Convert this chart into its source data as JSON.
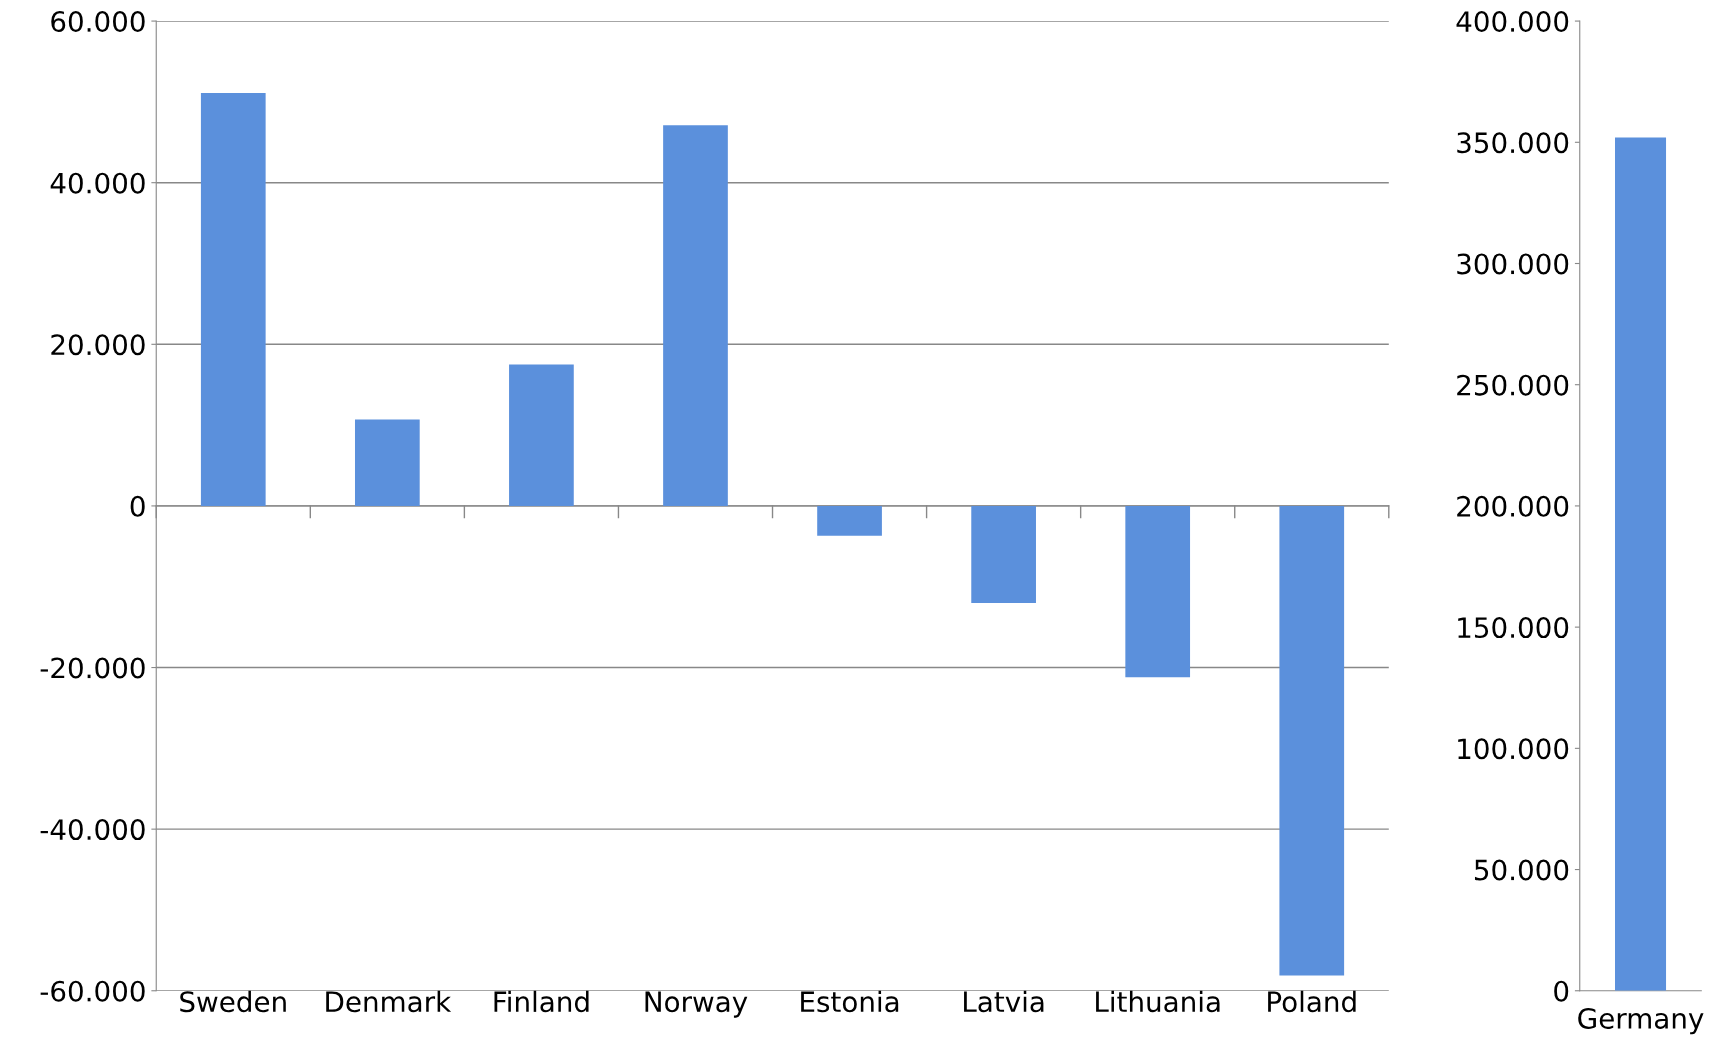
{
  "chart_data": [
    {
      "type": "bar",
      "categories": [
        "Sweden",
        "Denmark",
        "Finland",
        "Norway",
        "Estonia",
        "Latvia",
        "Lithuania",
        "Poland"
      ],
      "values": [
        51100,
        10700,
        17500,
        47100,
        -3700,
        -12000,
        -21200,
        -58100
      ],
      "color": "#5b90dc",
      "ylim": [
        -60000,
        60000
      ],
      "yticks": [
        {
          "value": -60000,
          "label": "-60.000"
        },
        {
          "value": -40000,
          "label": "-40.000"
        },
        {
          "value": -20000,
          "label": "-20.000"
        },
        0,
        {
          "value": 20000,
          "label": "20.000"
        },
        {
          "value": 40000,
          "label": "40.000"
        },
        {
          "value": 60000,
          "label": "60.000"
        }
      ],
      "grid": "y"
    },
    {
      "type": "bar",
      "categories": [
        "Germany"
      ],
      "values": [
        352000
      ],
      "color": "#5b90dc",
      "ylim": [
        0,
        400000
      ],
      "yticks": [
        0,
        {
          "value": 50000,
          "label": "50.000"
        },
        {
          "value": 100000,
          "label": "100.000"
        },
        {
          "value": 150000,
          "label": "150.000"
        },
        {
          "value": 200000,
          "label": "200.000"
        },
        {
          "value": 250000,
          "label": "250.000"
        },
        {
          "value": 300000,
          "label": "300.000"
        },
        {
          "value": 350000,
          "label": "350.000"
        },
        {
          "value": 400000,
          "label": "400.000"
        }
      ],
      "grid": false
    }
  ]
}
